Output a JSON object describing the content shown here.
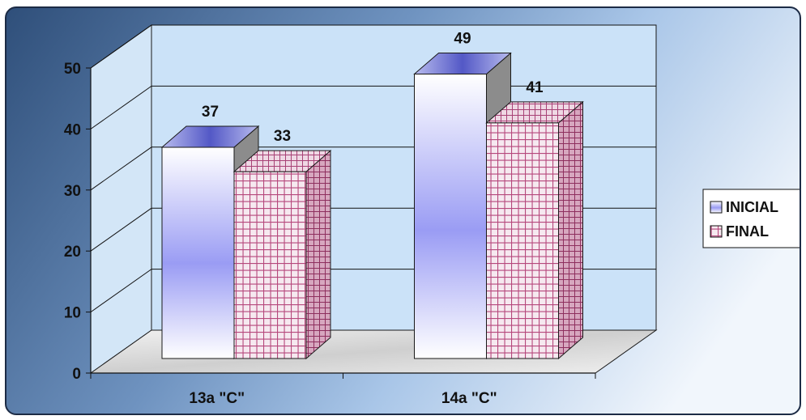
{
  "chart_data": {
    "type": "bar",
    "categories": [
      "13a \"C\"",
      "14a \"C\""
    ],
    "series": [
      {
        "name": "INICIAL",
        "values": [
          37,
          49
        ],
        "data_labels": [
          "37",
          "49"
        ]
      },
      {
        "name": "FINAL",
        "values": [
          33,
          41
        ],
        "data_labels": [
          "33",
          "41"
        ]
      }
    ],
    "ylim": [
      0,
      50
    ],
    "yticks": [
      "0",
      "10",
      "20",
      "30",
      "40",
      "50"
    ],
    "legend_position": "right",
    "grid": true,
    "colors": {
      "inicial_fill": "#ffffff",
      "inicial_accent": "#9a9cf4",
      "final_grid": "#b6487c",
      "final_bg": "#f6e9f0",
      "back_wall": "#cbe2f8",
      "floor": "#d9d9d9"
    }
  }
}
